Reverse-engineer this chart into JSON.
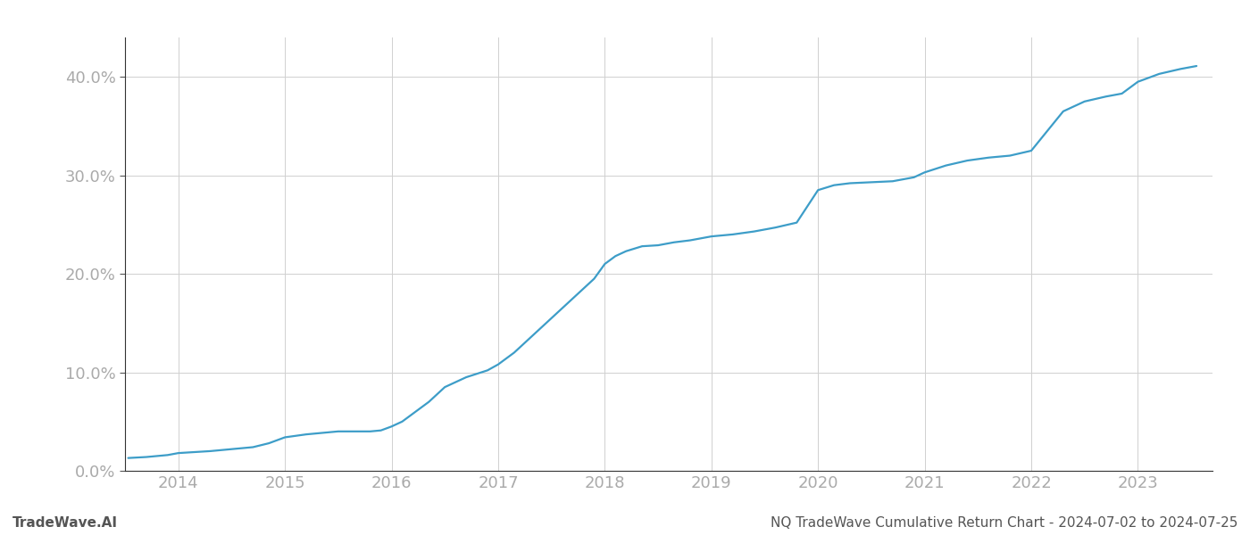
{
  "title": "",
  "footer_left": "TradeWave.AI",
  "footer_right": "NQ TradeWave Cumulative Return Chart - 2024-07-02 to 2024-07-25",
  "line_color": "#3d9dc8",
  "background_color": "#ffffff",
  "grid_color": "#d0d0d0",
  "years": [
    2014,
    2015,
    2016,
    2017,
    2018,
    2019,
    2020,
    2021,
    2022,
    2023
  ],
  "x_values": [
    2013.53,
    2013.7,
    2013.9,
    2014.0,
    2014.15,
    2014.3,
    2014.5,
    2014.7,
    2014.85,
    2015.0,
    2015.2,
    2015.5,
    2015.8,
    2015.9,
    2016.0,
    2016.1,
    2016.2,
    2016.35,
    2016.5,
    2016.7,
    2016.9,
    2017.0,
    2017.15,
    2017.3,
    2017.5,
    2017.65,
    2017.8,
    2017.9,
    2018.0,
    2018.1,
    2018.2,
    2018.35,
    2018.5,
    2018.65,
    2018.8,
    2019.0,
    2019.2,
    2019.4,
    2019.6,
    2019.8,
    2020.0,
    2020.15,
    2020.3,
    2020.5,
    2020.7,
    2020.9,
    2021.0,
    2021.2,
    2021.4,
    2021.6,
    2021.8,
    2022.0,
    2022.15,
    2022.3,
    2022.5,
    2022.7,
    2022.85,
    2023.0,
    2023.2,
    2023.4,
    2023.55
  ],
  "y_values": [
    1.3,
    1.4,
    1.6,
    1.8,
    1.9,
    2.0,
    2.2,
    2.4,
    2.8,
    3.4,
    3.7,
    4.0,
    4.0,
    4.1,
    4.5,
    5.0,
    5.8,
    7.0,
    8.5,
    9.5,
    10.2,
    10.8,
    12.0,
    13.5,
    15.5,
    17.0,
    18.5,
    19.5,
    21.0,
    21.8,
    22.3,
    22.8,
    22.9,
    23.2,
    23.4,
    23.8,
    24.0,
    24.3,
    24.7,
    25.2,
    28.5,
    29.0,
    29.2,
    29.3,
    29.4,
    29.8,
    30.3,
    31.0,
    31.5,
    31.8,
    32.0,
    32.5,
    34.5,
    36.5,
    37.5,
    38.0,
    38.3,
    39.5,
    40.3,
    40.8,
    41.1
  ],
  "ylim": [
    0,
    44
  ],
  "xlim": [
    2013.5,
    2023.7
  ],
  "yticks": [
    0,
    10,
    20,
    30,
    40
  ],
  "ytick_labels": [
    "0.0%",
    "10.0%",
    "20.0%",
    "30.0%",
    "40.0%"
  ],
  "xticks": [
    2014,
    2015,
    2016,
    2017,
    2018,
    2019,
    2020,
    2021,
    2022,
    2023
  ],
  "tick_color": "#aaaaaa",
  "label_fontsize": 13,
  "footer_fontsize": 11,
  "line_width": 1.6
}
